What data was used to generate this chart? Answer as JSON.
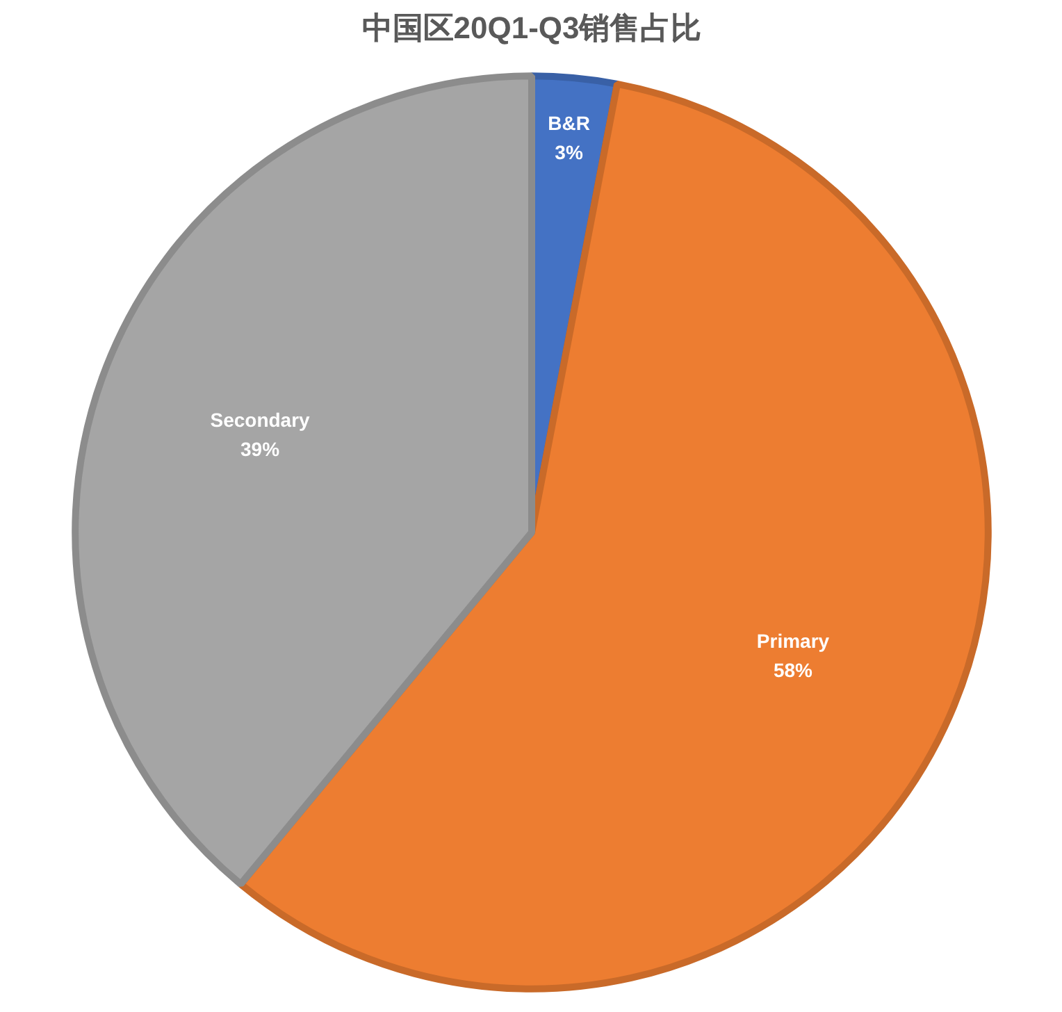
{
  "chart_data": {
    "type": "pie",
    "title": "中国区20Q1-Q3销售占比",
    "categories": [
      "B&R",
      "Primary",
      "Secondary"
    ],
    "values": [
      3,
      58,
      39
    ],
    "value_labels": [
      "3%",
      "58%",
      "39%"
    ],
    "colors": [
      "#4472c4",
      "#ed7d31",
      "#a5a5a5"
    ]
  }
}
